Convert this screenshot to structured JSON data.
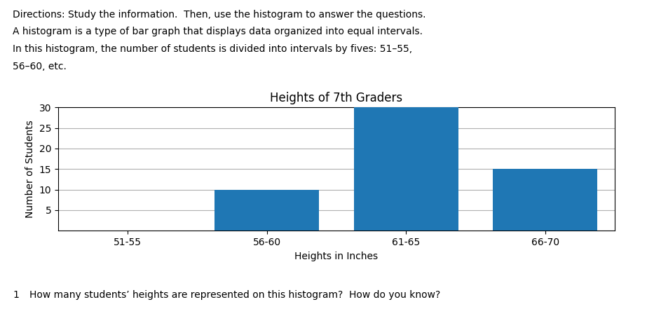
{
  "chart_data": {
    "type": "bar",
    "title": "Heights of 7th Graders",
    "x_label": "Heights in Inches",
    "y_label": "Number of Students",
    "categories": [
      "51-55",
      "56-60",
      "61-65",
      "66-70"
    ],
    "values": [
      0,
      10,
      30,
      15
    ],
    "ylim": [
      0,
      30
    ],
    "yticks": [
      5,
      10,
      15,
      20,
      25,
      30
    ],
    "grid": true,
    "annotations": [
      "Directions: Study the information.  Then, use the histogram to answer the questions.",
      "A histogram is a type of bar graph that displays data organized into equal intervals.",
      "In this histogram, the number of students is divided into intervals by fives: 51–55,",
      "56–60, etc.",
      "1",
      "How many students’ heights are represented on this histogram?  How do you know?"
    ]
  }
}
